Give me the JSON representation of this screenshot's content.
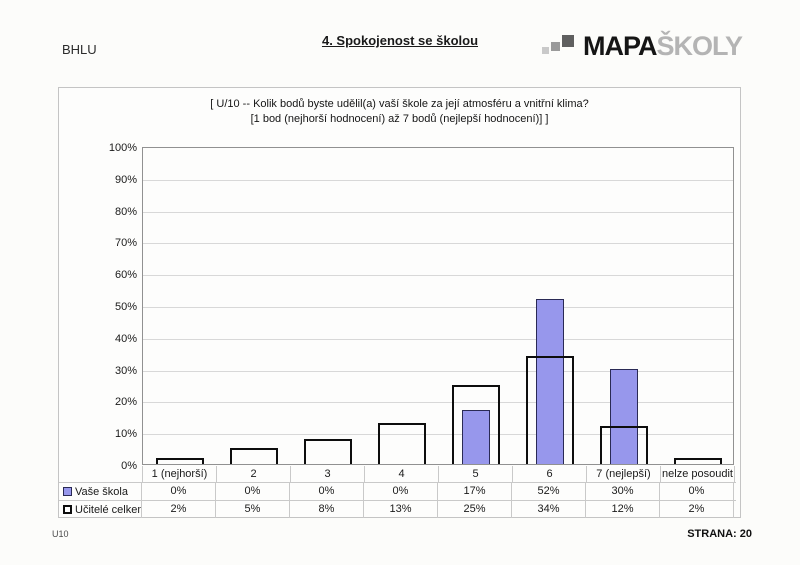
{
  "page": {
    "code": "BHLU",
    "section_title": "4. Spokojenost se školou",
    "footer_left": "U10",
    "footer_right": "STRANA: 20"
  },
  "logo": {
    "text_primary": "MAPA",
    "text_secondary": "ŠKOLY",
    "icon": "rising-squares-icon"
  },
  "chart_data": {
    "type": "bar",
    "title_line1": "[ U/10 -- Kolik bodů byste udělil(a) vaší škole za její atmosféru a vnitřní klima?",
    "title_line2": "[1 bod (nejhorší hodnocení) až 7 bodů (nejlepší hodnocení)] ]",
    "categories": [
      "1 (nejhorší)",
      "2",
      "3",
      "4",
      "5",
      "6",
      "7 (nejlepší)",
      "nelze posoudit"
    ],
    "series": [
      {
        "name": "Vaše škola",
        "values": [
          0,
          0,
          0,
          0,
          17,
          52,
          30,
          0
        ],
        "style": "filled",
        "color": "#9797ec"
      },
      {
        "name": "Učitelé celkem",
        "values": [
          2,
          5,
          8,
          13,
          25,
          34,
          12,
          2
        ],
        "style": "outline",
        "color": "#ffffff"
      }
    ],
    "ylim": [
      0,
      100
    ],
    "ytick_step": 10,
    "tick_suffix": "%",
    "value_suffix": "%",
    "grid": true,
    "legend_position": "table-left"
  }
}
